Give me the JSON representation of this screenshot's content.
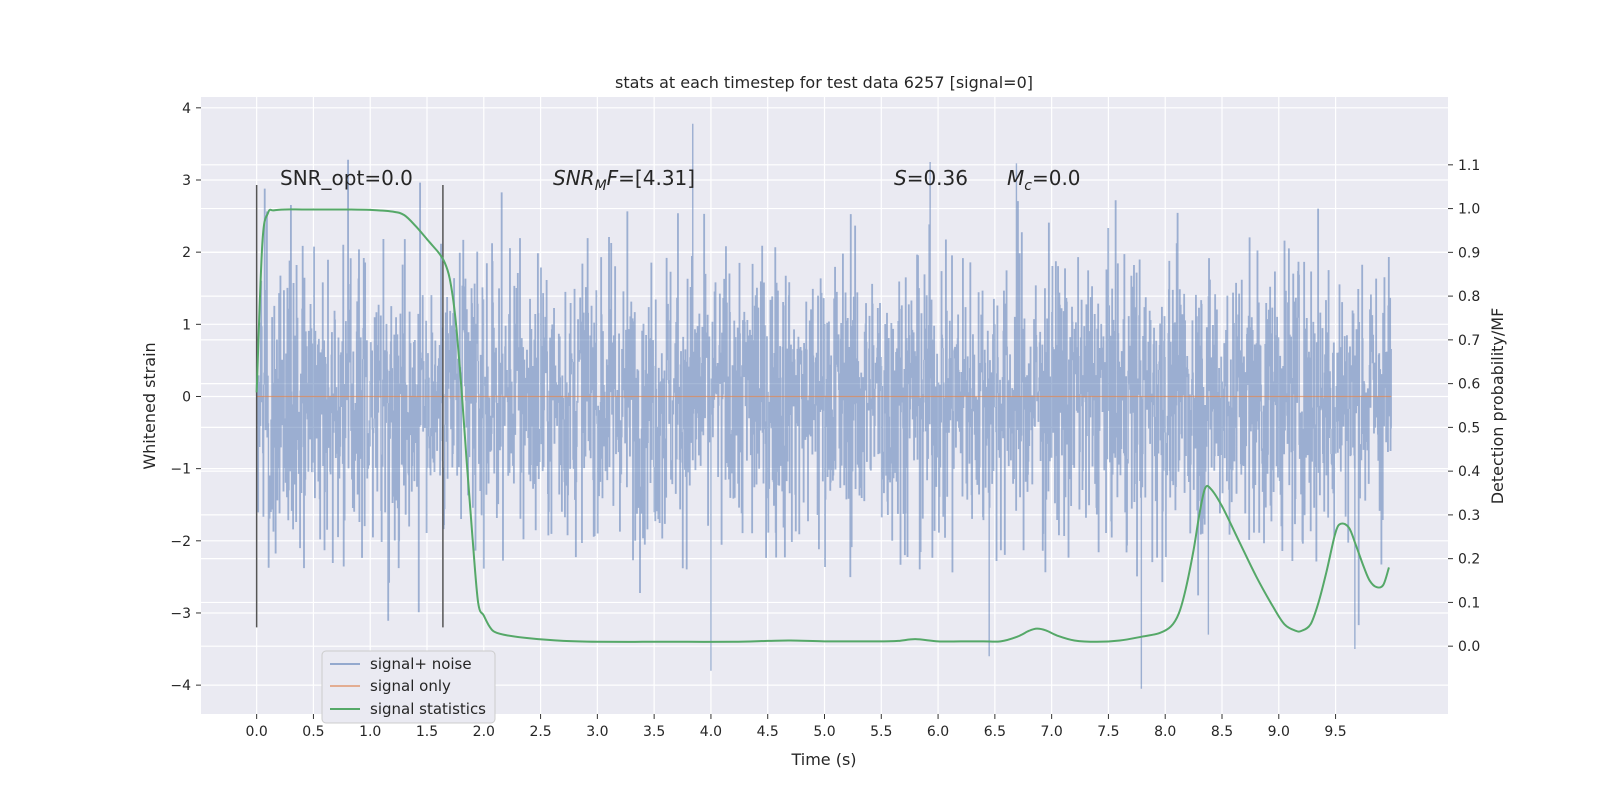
{
  "chart_data": {
    "type": "line",
    "title": "stats at each timestep for test data 6257 [signal=0]",
    "xlabel": "Time (s)",
    "ylabel_left": "Whitened strain",
    "ylabel_right": "Detection probability/MF",
    "x_range": [
      -0.49,
      10.49
    ],
    "y_left_range": [
      -4.4,
      4.15
    ],
    "y_right_range": [
      -0.155,
      1.255
    ],
    "x_ticks": [
      0.0,
      0.5,
      1.0,
      1.5,
      2.0,
      2.5,
      3.0,
      3.5,
      4.0,
      4.5,
      5.0,
      5.5,
      6.0,
      6.5,
      7.0,
      7.5,
      8.0,
      8.5,
      9.0,
      9.5
    ],
    "x_tick_labels": [
      "0.0",
      "0.5",
      "1.0",
      "1.5",
      "2.0",
      "2.5",
      "3.0",
      "3.5",
      "4.0",
      "4.5",
      "5.0",
      "5.5",
      "6.0",
      "6.5",
      "7.0",
      "7.5",
      "8.0",
      "8.5",
      "9.0",
      "9.5"
    ],
    "y_left_ticks": [
      -4,
      -3,
      -2,
      -1,
      0,
      1,
      2,
      3,
      4
    ],
    "y_left_tick_labels": [
      "−4",
      "−3",
      "−2",
      "−1",
      "0",
      "1",
      "2",
      "3",
      "4"
    ],
    "y_right_ticks": [
      0.0,
      0.1,
      0.2,
      0.3,
      0.4,
      0.5,
      0.6,
      0.7,
      0.8,
      0.9,
      1.0,
      1.1
    ],
    "y_right_tick_labels": [
      "0.0",
      "0.1",
      "0.2",
      "0.3",
      "0.4",
      "0.5",
      "0.6",
      "0.7",
      "0.8",
      "0.9",
      "1.0",
      "1.1"
    ],
    "grid": true,
    "legend_position": "lower-left",
    "series": [
      {
        "name": "signal+ noise",
        "kind": "noise-band",
        "color": "#4c72b0",
        "x_start": 0.0,
        "x_end": 9.99,
        "approx_range": [
          -4.05,
          3.78
        ],
        "notable_spikes": [
          {
            "x": 3.84,
            "y": 3.78
          },
          {
            "x": 5.93,
            "y": 3.25
          },
          {
            "x": 6.69,
            "y": 3.23
          },
          {
            "x": 4.0,
            "y": -3.8
          },
          {
            "x": 7.79,
            "y": -4.05
          },
          {
            "x": 8.38,
            "y": -3.3
          },
          {
            "x": 9.67,
            "y": -3.5
          },
          {
            "x": 6.45,
            "y": -3.6
          }
        ]
      },
      {
        "name": "signal only",
        "color": "#dd8452",
        "x": [
          0.0,
          9.99
        ],
        "y": [
          0.0,
          0.0
        ]
      },
      {
        "name": "signal statistics",
        "color": "#55a868",
        "axis": "right",
        "x": [
          0.0,
          0.05,
          0.1,
          0.15,
          0.25,
          0.4,
          0.6,
          0.8,
          1.0,
          1.2,
          1.3,
          1.4,
          1.5,
          1.55,
          1.6,
          1.65,
          1.7,
          1.75,
          1.8,
          1.85,
          1.9,
          1.95,
          2.0,
          2.05,
          2.1,
          2.2,
          2.4,
          2.7,
          3.0,
          3.4,
          3.8,
          4.2,
          4.5,
          4.7,
          5.0,
          5.3,
          5.5,
          5.65,
          5.8,
          6.0,
          6.2,
          6.4,
          6.55,
          6.7,
          6.8,
          6.87,
          6.95,
          7.05,
          7.2,
          7.4,
          7.6,
          7.8,
          7.95,
          8.05,
          8.12,
          8.18,
          8.25,
          8.3,
          8.35,
          8.4,
          8.5,
          8.65,
          8.8,
          8.95,
          9.05,
          9.15,
          9.2,
          9.28,
          9.35,
          9.42,
          9.5,
          9.55,
          9.62,
          9.68,
          9.75,
          9.8,
          9.86,
          9.92,
          9.97
        ],
        "y": [
          0.58,
          0.92,
          0.99,
          0.996,
          0.998,
          0.998,
          0.998,
          0.998,
          0.997,
          0.993,
          0.985,
          0.96,
          0.93,
          0.915,
          0.9,
          0.88,
          0.84,
          0.75,
          0.6,
          0.42,
          0.25,
          0.1,
          0.07,
          0.045,
          0.032,
          0.025,
          0.018,
          0.012,
          0.01,
          0.01,
          0.01,
          0.01,
          0.012,
          0.013,
          0.011,
          0.011,
          0.011,
          0.012,
          0.016,
          0.011,
          0.011,
          0.011,
          0.011,
          0.022,
          0.035,
          0.04,
          0.036,
          0.024,
          0.013,
          0.01,
          0.013,
          0.022,
          0.03,
          0.045,
          0.075,
          0.13,
          0.22,
          0.3,
          0.36,
          0.36,
          0.32,
          0.24,
          0.16,
          0.09,
          0.05,
          0.035,
          0.035,
          0.05,
          0.1,
          0.17,
          0.26,
          0.28,
          0.27,
          0.23,
          0.18,
          0.15,
          0.135,
          0.14,
          0.18
        ]
      }
    ],
    "vertical_markers": [
      0.0,
      1.64
    ],
    "annotations": {
      "snr_opt": "SNR_opt=0.0",
      "snr_mf_prefix": "SNR",
      "snr_mf_sub": "M",
      "snr_mf_mid": "F",
      "snr_mf_value": "=[4.31]",
      "s_symbol": "S",
      "s_value": "=0.36",
      "mc_symbol": "M",
      "mc_sub": "c",
      "mc_value": "=0.0"
    },
    "legend": [
      "signal+ noise",
      "signal only",
      "signal statistics"
    ]
  },
  "colors": {
    "background": "#ffffff",
    "plot_area": "#eaeaf2",
    "grid": "#ffffff",
    "marker_line": "#555555"
  }
}
